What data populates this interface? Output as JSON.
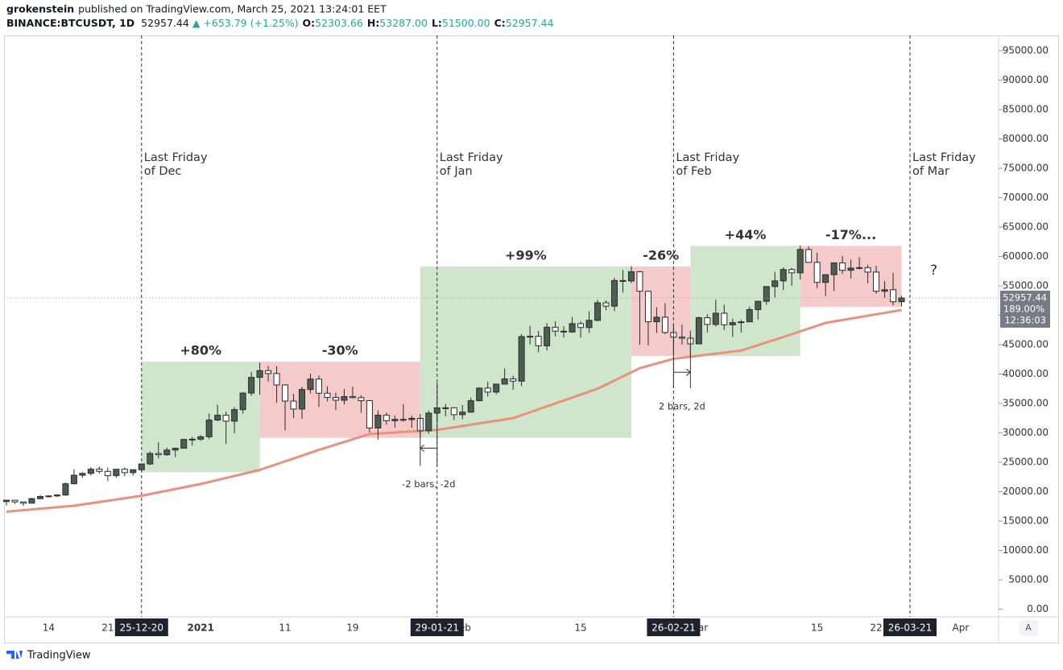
{
  "chart_data": {
    "type": "candlestick",
    "header": {
      "author": "grokenstein",
      "published": "published on TradingView.com, March 25, 2021 13:24:01 EET",
      "symbol": "BINANCE:BTCUSDT, 1D",
      "last": "52957.44",
      "change": "▲ +653.79 (+1.25%)",
      "ohlc": [
        {
          "label": "O:",
          "value": "52303.66"
        },
        {
          "label": "H:",
          "value": "53287.00"
        },
        {
          "label": "L:",
          "value": "51500.00"
        },
        {
          "label": "C:",
          "value": "52957.44"
        }
      ]
    },
    "up_color": "#4c5e50",
    "down_color": "#ffffff",
    "wick_color": "#2b2b2b",
    "x": [
      "09-12-20",
      "10-12-20",
      "11-12-20",
      "12-12-20",
      "13-12-20",
      "14-12-20",
      "15-12-20",
      "16-12-20",
      "17-12-20",
      "18-12-20",
      "19-12-20",
      "20-12-20",
      "21-12-20",
      "22-12-20",
      "23-12-20",
      "24-12-20",
      "25-12-20",
      "26-12-20",
      "27-12-20",
      "28-12-20",
      "29-12-20",
      "30-12-20",
      "31-12-20",
      "01-01-21",
      "02-01-21",
      "03-01-21",
      "04-01-21",
      "05-01-21",
      "06-01-21",
      "07-01-21",
      "08-01-21",
      "09-01-21",
      "10-01-21",
      "11-01-21",
      "12-01-21",
      "13-01-21",
      "14-01-21",
      "15-01-21",
      "16-01-21",
      "17-01-21",
      "18-01-21",
      "19-01-21",
      "20-01-21",
      "21-01-21",
      "22-01-21",
      "23-01-21",
      "24-01-21",
      "25-01-21",
      "26-01-21",
      "27-01-21",
      "28-01-21",
      "29-01-21",
      "30-01-21",
      "31-01-21",
      "01-02-21",
      "02-02-21",
      "03-02-21",
      "04-02-21",
      "05-02-21",
      "06-02-21",
      "07-02-21",
      "08-02-21",
      "09-02-21",
      "10-02-21",
      "11-02-21",
      "12-02-21",
      "13-02-21",
      "14-02-21",
      "15-02-21",
      "16-02-21",
      "17-02-21",
      "18-02-21",
      "19-02-21",
      "20-02-21",
      "21-02-21",
      "22-02-21",
      "23-02-21",
      "24-02-21",
      "25-02-21",
      "26-02-21",
      "27-02-21",
      "28-02-21",
      "01-03-21",
      "02-03-21",
      "03-03-21",
      "04-03-21",
      "05-03-21",
      "06-03-21",
      "07-03-21",
      "08-03-21",
      "09-03-21",
      "10-03-21",
      "11-03-21",
      "12-03-21",
      "13-03-21",
      "14-03-21",
      "15-03-21",
      "16-03-21",
      "17-03-21",
      "18-03-21",
      "19-03-21",
      "20-03-21",
      "21-03-21",
      "22-03-21",
      "23-03-21",
      "24-03-21",
      "25-03-21"
    ],
    "open": [
      18320,
      18541,
      18254,
      18036,
      18808,
      19175,
      19273,
      19426,
      21335,
      22797,
      23107,
      23821,
      23455,
      22719,
      23810,
      23232,
      23729,
      24712,
      26493,
      26281,
      27079,
      27385,
      28875,
      28923,
      29331,
      32178,
      33000,
      31988,
      33949,
      36769,
      39432,
      40582,
      40088,
      38150,
      35404,
      34051,
      37372,
      39144,
      36742,
      36018,
      35547,
      36170,
      35992,
      35468,
      30825,
      33006,
      32067,
      32289,
      32254,
      32467,
      30366,
      33364,
      34252,
      34262,
      33092,
      33526,
      35466,
      37618,
      36937,
      38290,
      39186,
      38795,
      46374,
      46420,
      44807,
      47969,
      47287,
      47153,
      48577,
      47911,
      49133,
      52119,
      51552,
      55906,
      55841,
      57408,
      54087,
      48891,
      49676,
      47073,
      46276,
      46106,
      45135,
      49587,
      48440,
      50349,
      48374,
      48751,
      48882,
      50971,
      52375,
      54884,
      55851,
      57773,
      57221,
      61188,
      59000,
      55585,
      56900,
      58912,
      57648,
      58030,
      58102,
      57351,
      54083,
      54340,
      52303.66
    ],
    "high": [
      18630,
      18557,
      18292,
      18948,
      19411,
      19349,
      19570,
      21560,
      23800,
      23285,
      24171,
      24295,
      24102,
      23837,
      24100,
      23789,
      24789,
      26867,
      28422,
      27500,
      27410,
      28996,
      29300,
      29600,
      33300,
      34778,
      33600,
      34360,
      36939,
      40365,
      41950,
      41380,
      41350,
      38264,
      36628,
      37850,
      40100,
      39747,
      37950,
      36852,
      37469,
      37850,
      36415,
      35600,
      33826,
      33456,
      32945,
      34875,
      32921,
      32557,
      33783,
      38531,
      34933,
      34342,
      34717,
      35984,
      37662,
      38708,
      38310,
      40955,
      39700,
      46794,
      48200,
      47310,
      48678,
      48985,
      48150,
      49707,
      49010,
      50689,
      52618,
      52530,
      56368,
      57700,
      58352,
      57534,
      54183,
      51374,
      52041,
      48424,
      48394,
      46638,
      49790,
      50200,
      52640,
      51773,
      49448,
      49200,
      51450,
      52402,
      54895,
      57387,
      58150,
      58058,
      61844,
      61724,
      60633,
      56938,
      58981,
      60100,
      59468,
      59880,
      58589,
      58430,
      55830,
      57200,
      53287
    ],
    "low": [
      17650,
      17911,
      17572,
      18020,
      18711,
      19000,
      19050,
      19278,
      21230,
      22350,
      22750,
      23060,
      21815,
      22353,
      22600,
      22703,
      23433,
      24500,
      25700,
      26101,
      25880,
      27320,
      27850,
      28624,
      28946,
      31962,
      28130,
      29900,
      33288,
      36300,
      36500,
      38720,
      35111,
      30420,
      32531,
      32380,
      36701,
      34408,
      35357,
      33850,
      34800,
      35844,
      33400,
      30071,
      28850,
      31390,
      30900,
      31900,
      30837,
      29241,
      29842,
      31915,
      32825,
      32171,
      32296,
      33418,
      35362,
      36161,
      36570,
      38215,
      37351,
      37988,
      45020,
      43727,
      43994,
      46400,
      46202,
      47015,
      46174,
      47003,
      48947,
      50901,
      50710,
      53863,
      55477,
      45000,
      44892,
      47003,
      46801,
      44106,
      45000,
      43000,
      45115,
      47047,
      48100,
      47500,
      46300,
      47070,
      48882,
      49274,
      51789,
      53005,
      54272,
      55013,
      56078,
      58966,
      54600,
      53271,
      54123,
      57023,
      56270,
      57820,
      55450,
      53650,
      53000,
      51700,
      51500
    ],
    "close": [
      18541,
      18254,
      18036,
      18808,
      19175,
      19273,
      19426,
      21335,
      22797,
      23107,
      23821,
      23455,
      22719,
      23810,
      23232,
      23729,
      24712,
      26493,
      26281,
      27079,
      27385,
      28875,
      28923,
      29331,
      32178,
      33000,
      31988,
      33949,
      36769,
      39432,
      40582,
      40088,
      38150,
      35404,
      34051,
      37372,
      39144,
      36742,
      36018,
      35547,
      36170,
      35992,
      35468,
      30825,
      33006,
      32067,
      32289,
      32254,
      32467,
      30366,
      33364,
      34252,
      34262,
      33092,
      33526,
      35466,
      37618,
      36937,
      38290,
      39186,
      38795,
      46374,
      46420,
      44807,
      47969,
      47287,
      47153,
      48577,
      47911,
      49133,
      52119,
      51552,
      55906,
      55841,
      57408,
      54087,
      48891,
      49676,
      47073,
      46276,
      46106,
      45135,
      49587,
      48440,
      50349,
      48374,
      48751,
      48882,
      50971,
      52375,
      54884,
      55851,
      57773,
      57221,
      61188,
      59000,
      55585,
      56900,
      58912,
      57648,
      58030,
      58102,
      57351,
      54083,
      54340,
      52303,
      52957.44
    ],
    "ma": {
      "color": "#e8917d",
      "x": [
        "09-12-20",
        "17-12-20",
        "25-12-20",
        "01-01-21",
        "08-01-21",
        "15-01-21",
        "21-01-21",
        "29-01-21",
        "07-02-21",
        "17-02-21",
        "22-02-21",
        "26-02-21",
        "06-03-21",
        "11-03-21",
        "16-03-21",
        "25-03-21"
      ],
      "values": [
        16600,
        17600,
        19300,
        21300,
        23700,
        27100,
        29800,
        30500,
        32500,
        37500,
        41000,
        42600,
        44000,
        46300,
        48700,
        50900
      ]
    },
    "ylim": [
      -1300,
      97600
    ],
    "yticks": [
      {
        "value": 95000,
        "label": "95000.00"
      },
      {
        "value": 90000,
        "label": "90000.00"
      },
      {
        "value": 85000,
        "label": "85000.00"
      },
      {
        "value": 80000,
        "label": "80000.00"
      },
      {
        "value": 75000,
        "label": "75000.00"
      },
      {
        "value": 70000,
        "label": "70000.00"
      },
      {
        "value": 65000,
        "label": "65000.00"
      },
      {
        "value": 60000,
        "label": "60000.00"
      },
      {
        "value": 55000,
        "label": "55000.00"
      },
      {
        "value": 50000,
        "label": "50000.00"
      },
      {
        "value": 45000,
        "label": "45000.00"
      },
      {
        "value": 40000,
        "label": "40000.00"
      },
      {
        "value": 35000,
        "label": "35000.00"
      },
      {
        "value": 30000,
        "label": "30000.00"
      },
      {
        "value": 25000,
        "label": "25000.00"
      },
      {
        "value": 20000,
        "label": "20000.00"
      },
      {
        "value": 15000,
        "label": "15000.00"
      },
      {
        "value": 10000,
        "label": "10000.00"
      },
      {
        "value": 5000,
        "label": "5000.00"
      },
      {
        "value": 0,
        "label": "0.00"
      }
    ],
    "xticks": [
      {
        "value": "14-12-20",
        "label": "14"
      },
      {
        "value": "21-12-20",
        "label": "21"
      },
      {
        "value": "01-01-21",
        "label": "2021"
      },
      {
        "value": "11-01-21",
        "label": "11"
      },
      {
        "value": "19-01-21",
        "label": "19"
      },
      {
        "value": "01-02-21",
        "label": "Feb"
      },
      {
        "value": "15-02-21",
        "label": "15"
      },
      {
        "value": "01-03-21",
        "label": "Mar"
      },
      {
        "value": "15-03-21",
        "label": "15"
      },
      {
        "value": "22-03-21",
        "label": "22"
      },
      {
        "value": "01-04-21",
        "label": "Apr"
      }
    ],
    "zones": [
      {
        "label": "+80%",
        "from": "25-12-20",
        "to": "08-01-21",
        "low": 23300,
        "high": 42100,
        "color": "#cfe6cc"
      },
      {
        "label": "-30%",
        "from": "08-01-21",
        "to": "27-01-21",
        "low": 29150,
        "high": 42100,
        "color": "#f4caca"
      },
      {
        "label": "+99%",
        "from": "27-01-21",
        "to": "21-02-21",
        "low": 29150,
        "high": 58300,
        "color": "#cfe6cc"
      },
      {
        "label": "-26%",
        "from": "21-02-21",
        "to": "28-02-21",
        "low": 43050,
        "high": 58300,
        "color": "#f4caca"
      },
      {
        "label": "+44%",
        "from": "28-02-21",
        "to": "13-03-21",
        "low": 43050,
        "high": 61800,
        "color": "#cfe6cc"
      },
      {
        "label": "-17%...",
        "from": "13-03-21",
        "to": "25-03-21",
        "low": 51400,
        "high": 61800,
        "color": "#f4caca"
      }
    ],
    "events": [
      {
        "date": "25-12-20",
        "label": [
          "Last Friday",
          "of Dec"
        ]
      },
      {
        "date": "29-01-21",
        "label": [
          "Last Friday",
          "of Jan"
        ]
      },
      {
        "date": "26-02-21",
        "label": [
          "Last Friday",
          "of Feb"
        ]
      },
      {
        "date": "26-03-21",
        "label": [
          "Last Friday",
          "of Mar"
        ]
      }
    ],
    "measures": [
      {
        "from": "27-01-21",
        "to": "29-01-21",
        "low": 24400,
        "high": 33200,
        "arrow_at": 27400,
        "label": "-2 bars, -2d"
      },
      {
        "from": "26-02-21",
        "to": "28-02-21",
        "low": 37600,
        "high": 47400,
        "arrow_at": 40300,
        "label": "2 bars, 2d"
      }
    ],
    "question": "?",
    "price_box": {
      "price": 52957.44,
      "label": "52957.44",
      "percent": "189.00%",
      "countdown": "12:36:03"
    },
    "scale_button": "A",
    "footer": "TradingView"
  }
}
